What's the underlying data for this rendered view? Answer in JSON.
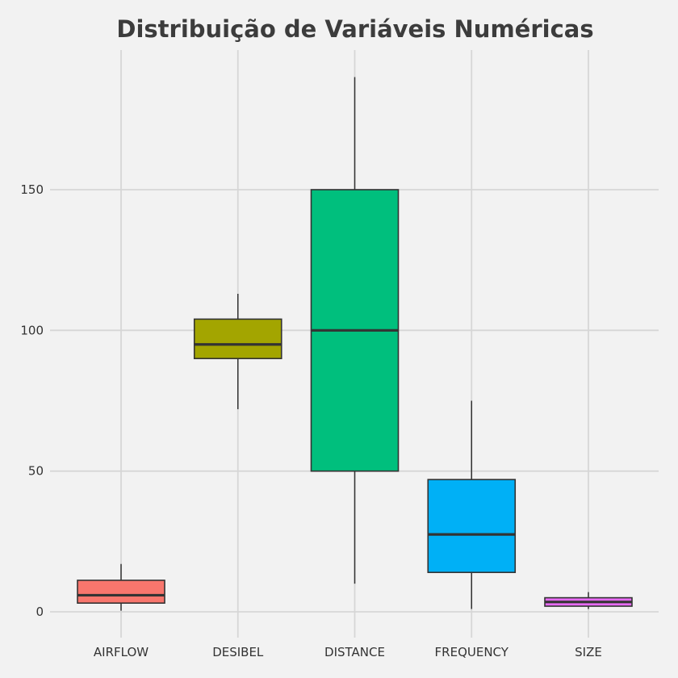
{
  "chart_data": {
    "type": "box",
    "title": "Distribuição de Variáveis Numéricas",
    "xlabel": "",
    "ylabel": "",
    "categories": [
      "AIRFLOW",
      "DESIBEL",
      "DISTANCE",
      "FREQUENCY",
      "SIZE"
    ],
    "boxes": [
      {
        "category": "AIRFLOW",
        "whisker_low": 0.4,
        "q1": 3.1,
        "median": 5.9,
        "q3": 11.2,
        "whisker_high": 17.0,
        "color": "#f8766d"
      },
      {
        "category": "DESIBEL",
        "whisker_low": 72,
        "q1": 90,
        "median": 95,
        "q3": 104,
        "whisker_high": 113,
        "color": "#a3a500"
      },
      {
        "category": "DISTANCE",
        "whisker_low": 10,
        "q1": 50,
        "median": 100,
        "q3": 150,
        "whisker_high": 190,
        "color": "#00bf7d"
      },
      {
        "category": "FREQUENCY",
        "whisker_low": 1,
        "q1": 14,
        "median": 27.5,
        "q3": 47,
        "whisker_high": 75,
        "color": "#00b0f6"
      },
      {
        "category": "SIZE",
        "whisker_low": 1,
        "q1": 2,
        "median": 3.5,
        "q3": 5,
        "whisker_high": 7,
        "color": "#e76bf3"
      }
    ],
    "yticks": [
      0,
      50,
      100,
      150
    ],
    "ylim": [
      -8,
      198
    ],
    "grid": true,
    "legend": "none"
  }
}
